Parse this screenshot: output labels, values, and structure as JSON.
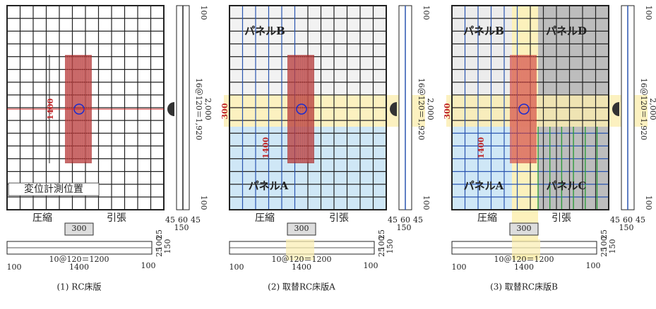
{
  "panels": [
    {
      "caption": "(1) RC床版",
      "compression": "圧縮",
      "tension": "引張",
      "load_width": "300",
      "side": {
        "spacing": "16＠120＝1,920",
        "total": "2,000",
        "top": "100",
        "bottom": "100",
        "widths": [
          "45",
          "60",
          "45"
        ],
        "width_total": "150"
      },
      "bottom": {
        "spacing": "10＠120＝1200",
        "total": "1400",
        "left": "100",
        "right": "100",
        "depths": [
          "25",
          "100",
          "25"
        ],
        "depth_total": "150"
      },
      "load_length": "1400",
      "measure_point": "変位計測位置"
    },
    {
      "caption": "(2) 取替RC床版A",
      "compression": "圧縮",
      "tension": "引張",
      "load_width": "300",
      "side": {
        "spacing": "16＠120＝1,920",
        "total": "2,000",
        "top": "100",
        "bottom": "100",
        "widths": [
          "45",
          "60",
          "45"
        ],
        "width_total": "150"
      },
      "bottom": {
        "spacing": "10＠120＝1200",
        "total": "1400",
        "left": "100",
        "right": "100",
        "depths": [
          "25",
          "100",
          "25"
        ],
        "depth_total": "150"
      },
      "load_length": "1400",
      "band_width": "300",
      "panel_b": "パネルB",
      "panel_a": "パネルA"
    },
    {
      "caption": "(3) 取替RC床版B",
      "compression": "圧縮",
      "tension": "引張",
      "load_width": "300",
      "side": {
        "spacing": "16＠120＝1,920",
        "total": "2,000",
        "top": "100",
        "bottom": "100",
        "widths": [
          "45",
          "60",
          "45"
        ],
        "width_total": "150"
      },
      "bottom": {
        "spacing": "10＠120＝1200",
        "total": "1400",
        "left": "100",
        "right": "100",
        "depths": [
          "25",
          "100",
          "25"
        ],
        "depth_total": "150"
      },
      "load_length": "1400",
      "band_width": "300",
      "panel_b": "パネルB",
      "panel_d": "パネルD",
      "panel_a": "パネルA",
      "panel_c": "パネルC"
    }
  ]
}
